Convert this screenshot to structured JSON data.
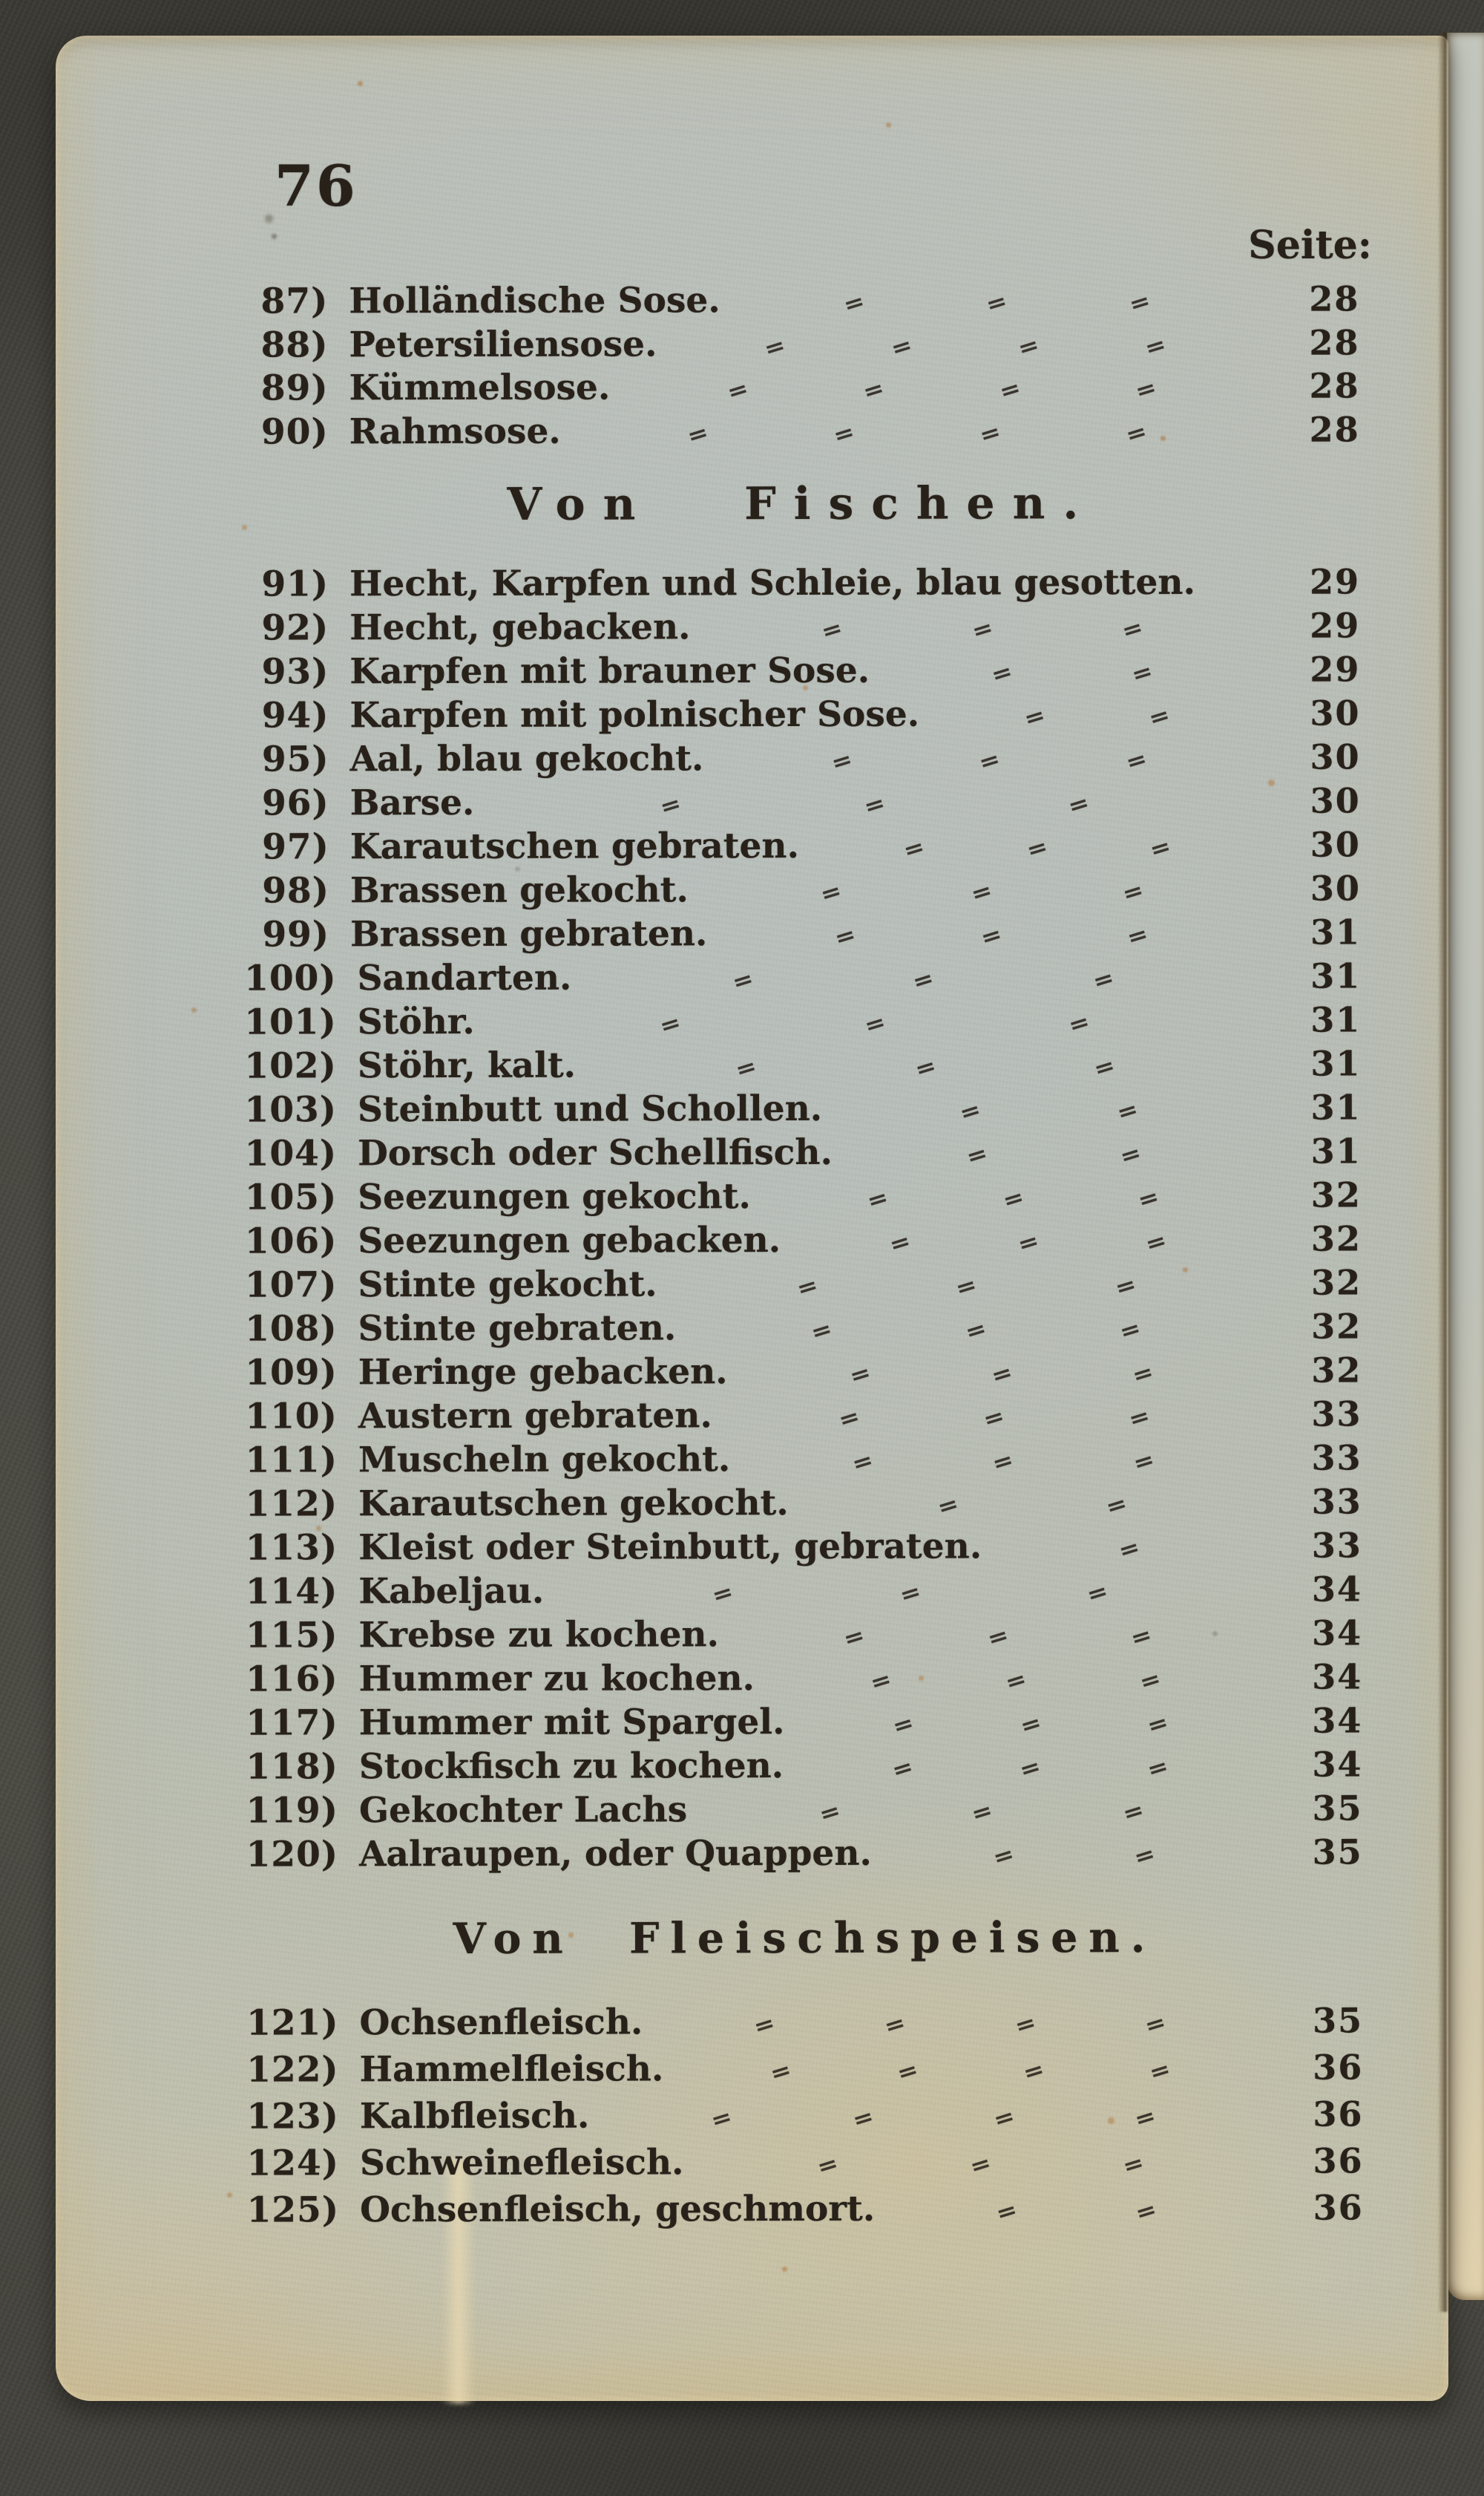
{
  "colors": {
    "paper": "#bcc0b6",
    "paper_edge_tint": "#e0d2ae",
    "ink": "#27211a",
    "scan_background": "#44433d"
  },
  "page": {
    "folio": "76",
    "column_header": "Seite:",
    "leader_glyph": "=",
    "sections": [
      {
        "heading": "",
        "entries": [
          {
            "no": "87)",
            "title": "Holländische Sose.",
            "page": "28",
            "seps": 3
          },
          {
            "no": "88)",
            "title": "Petersiliensose.",
            "page": "28",
            "seps": 4
          },
          {
            "no": "89)",
            "title": "Kümmelsose.",
            "page": "28",
            "seps": 4
          },
          {
            "no": "90)",
            "title": "Rahmsose.",
            "page": "28",
            "seps": 4
          }
        ]
      },
      {
        "heading": "Von Fischen.",
        "entries": [
          {
            "no": "91)",
            "title": "Hecht, Karpfen und Schleie, blau gesotten.",
            "page": "29",
            "seps": 0
          },
          {
            "no": "92)",
            "title": "Hecht, gebacken.",
            "page": "29",
            "seps": 3
          },
          {
            "no": "93)",
            "title": "Karpfen mit brauner Sose.",
            "page": "29",
            "seps": 2
          },
          {
            "no": "94)",
            "title": "Karpfen mit polnischer Sose.",
            "page": "30",
            "seps": 2
          },
          {
            "no": "95)",
            "title": "Aal, blau gekocht.",
            "page": "30",
            "seps": 3
          },
          {
            "no": "96)",
            "title": "Barse.",
            "page": "30",
            "seps": 3
          },
          {
            "no": "97)",
            "title": "Karautschen gebraten.",
            "page": "30",
            "seps": 3
          },
          {
            "no": "98)",
            "title": "Brassen gekocht.",
            "page": "30",
            "seps": 3
          },
          {
            "no": "99)",
            "title": "Brassen gebraten.",
            "page": "31",
            "seps": 3
          },
          {
            "no": "100)",
            "title": "Sandarten.",
            "page": "31",
            "seps": 3
          },
          {
            "no": "101)",
            "title": "Stöhr.",
            "page": "31",
            "seps": 3
          },
          {
            "no": "102)",
            "title": "Stöhr, kalt.",
            "page": "31",
            "seps": 3
          },
          {
            "no": "103)",
            "title": "Steinbutt und Schollen.",
            "page": "31",
            "seps": 2
          },
          {
            "no": "104)",
            "title": "Dorsch oder Schellfisch.",
            "page": "31",
            "seps": 2
          },
          {
            "no": "105)",
            "title": "Seezungen gekocht.",
            "page": "32",
            "seps": 3
          },
          {
            "no": "106)",
            "title": "Seezungen gebacken.",
            "page": "32",
            "seps": 3
          },
          {
            "no": "107)",
            "title": "Stinte gekocht.",
            "page": "32",
            "seps": 3
          },
          {
            "no": "108)",
            "title": "Stinte gebraten.",
            "page": "32",
            "seps": 3
          },
          {
            "no": "109)",
            "title": "Heringe gebacken.",
            "page": "32",
            "seps": 3
          },
          {
            "no": "110)",
            "title": "Austern gebraten.",
            "page": "33",
            "seps": 3
          },
          {
            "no": "111)",
            "title": "Muscheln gekocht.",
            "page": "33",
            "seps": 3
          },
          {
            "no": "112)",
            "title": "Karautschen gekocht.",
            "page": "33",
            "seps": 2
          },
          {
            "no": "113)",
            "title": "Kleist oder Steinbutt, gebraten.",
            "page": "33",
            "seps": 1
          },
          {
            "no": "114)",
            "title": "Kabeljau.",
            "page": "34",
            "seps": 3
          },
          {
            "no": "115)",
            "title": "Krebse zu kochen.",
            "page": "34",
            "seps": 3
          },
          {
            "no": "116)",
            "title": "Hummer zu kochen.",
            "page": "34",
            "seps": 3
          },
          {
            "no": "117)",
            "title": "Hummer mit Spargel.",
            "page": "34",
            "seps": 3
          },
          {
            "no": "118)",
            "title": "Stockfisch zu kochen.",
            "page": "34",
            "seps": 3
          },
          {
            "no": "119)",
            "title": "Gekochter Lachs",
            "page": "35",
            "seps": 3
          },
          {
            "no": "120)",
            "title": "Aalraupen, oder Quappen.",
            "page": "35",
            "seps": 2
          }
        ]
      },
      {
        "heading": "Von Fleischspeisen.",
        "entries": [
          {
            "no": "121)",
            "title": "Ochsenfleisch.",
            "page": "35",
            "seps": 4
          },
          {
            "no": "122)",
            "title": "Hammelfleisch.",
            "page": "36",
            "seps": 4
          },
          {
            "no": "123)",
            "title": "Kalbfleisch.",
            "page": "36",
            "seps": 4
          },
          {
            "no": "124)",
            "title": "Schweinefleisch.",
            "page": "36",
            "seps": 3
          },
          {
            "no": "125)",
            "title": "Ochsenfleisch, geschmort.",
            "page": "36",
            "seps": 2
          }
        ]
      }
    ]
  }
}
